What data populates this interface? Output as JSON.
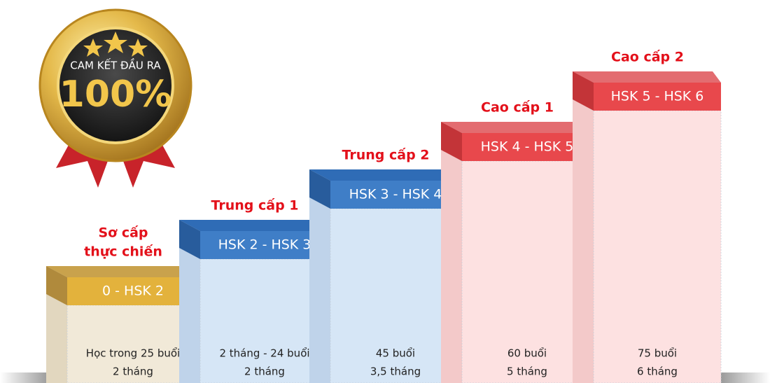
{
  "badge": {
    "caption": "CAM KẾT ĐẦU RA",
    "value": "100%"
  },
  "steps": [
    {
      "title": [
        "Sơ cấp",
        "thực chiến"
      ],
      "level": "0 - HSK 2",
      "details": [
        "Học trong 25 buổi",
        "2 tháng"
      ]
    },
    {
      "title": [
        "Trung cấp 1"
      ],
      "level": "HSK 2 - HSK 3",
      "details": [
        "2 tháng - 24 buổi",
        "2 tháng"
      ]
    },
    {
      "title": [
        "Trung cấp 2"
      ],
      "level": "HSK 3 - HSK 4",
      "details": [
        "45 buổi",
        "3,5 tháng"
      ]
    },
    {
      "title": [
        "Cao cấp 1"
      ],
      "level": "HSK 4 - HSK 5",
      "details": [
        "60 buổi",
        "5 tháng"
      ]
    },
    {
      "title": [
        "Cao cấp 2"
      ],
      "level": "HSK 5 - HSK 6",
      "details": [
        "75 buổi",
        "6 tháng"
      ]
    }
  ]
}
